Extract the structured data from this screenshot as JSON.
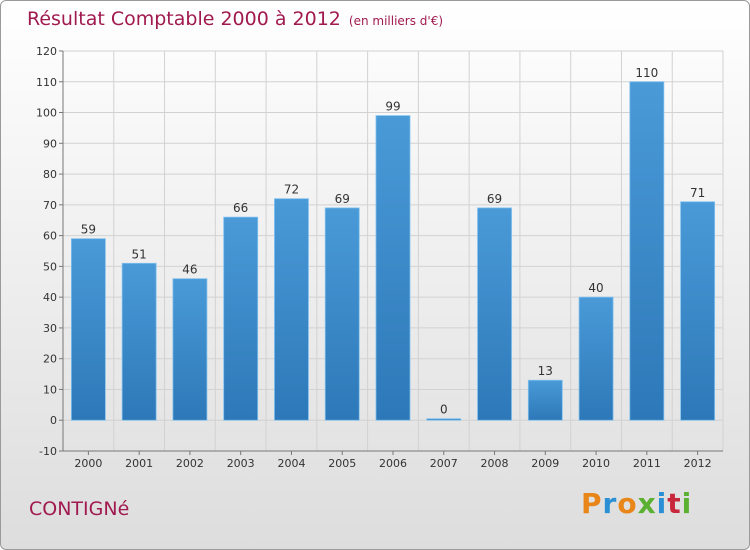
{
  "chart_data": {
    "type": "bar",
    "title": "Résultat Comptable 2000 à 2012",
    "subtitle": "(en milliers d'€)",
    "categories": [
      "2000",
      "2001",
      "2002",
      "2003",
      "2004",
      "2005",
      "2006",
      "2007",
      "2008",
      "2009",
      "2010",
      "2011",
      "2012"
    ],
    "values": [
      59,
      51,
      46,
      66,
      72,
      69,
      99,
      0,
      69,
      13,
      40,
      110,
      71
    ],
    "ylim": [
      -10,
      120
    ],
    "yticks": [
      -10,
      0,
      10,
      20,
      30,
      40,
      50,
      60,
      70,
      80,
      90,
      100,
      110,
      120
    ],
    "grid": true,
    "bar_color": "#4a9ad8",
    "bar_color_dark": "#2d78b8"
  },
  "footer": {
    "commune": "CONTIGNé",
    "brand": "Proxiti"
  },
  "colors": {
    "title": "#a11a4f",
    "brand_letters": [
      "#e8861a",
      "#2a8fd4",
      "#e8861a",
      "#5ab031",
      "#2a8fd4",
      "#c8263a",
      "#5ab031"
    ]
  }
}
